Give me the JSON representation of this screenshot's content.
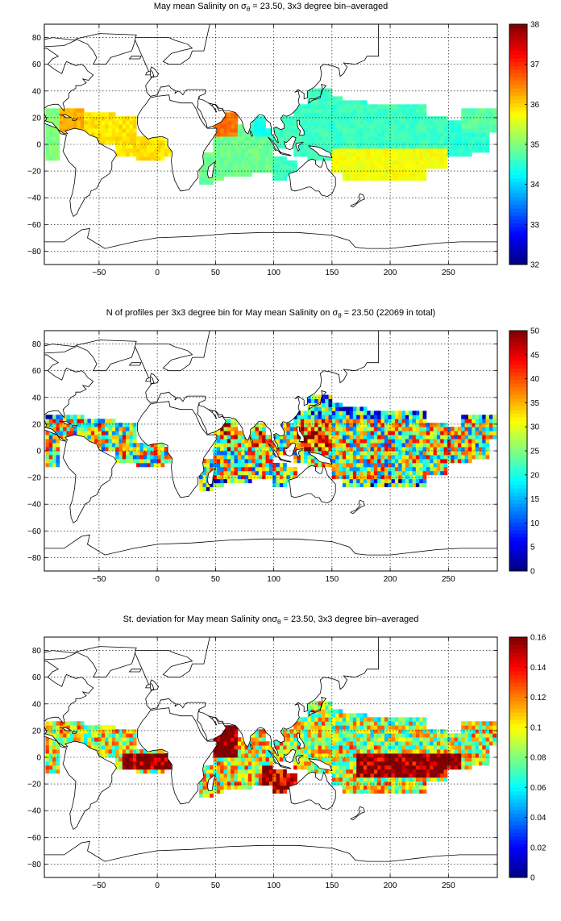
{
  "chart_data": [
    {
      "type": "heatmap",
      "title": {
        "prefix": "May mean Salinity on ",
        "symbol": "σ",
        "sub": "θ",
        "suffix": " = 23.50, 3x3 degree bin–averaged"
      },
      "x_ticks": [
        -50,
        0,
        50,
        100,
        150,
        200,
        250
      ],
      "y_ticks": [
        -80,
        -60,
        -40,
        -20,
        0,
        20,
        40,
        60,
        80
      ],
      "xlim": [
        -97,
        292
      ],
      "ylim": [
        -90,
        90
      ],
      "grid": true,
      "colormap": "jet",
      "colorbar": {
        "ticks": [
          32,
          33,
          34,
          35,
          36,
          37,
          38
        ],
        "clim": [
          32,
          38
        ]
      },
      "approx_values": {
        "tropical_atlantic": 35.9,
        "caribbean": 36.2,
        "arabian_sea": 36.6,
        "bay_of_bengal": 34.4,
        "indian_ocean": 34.9,
        "north_pacific": 34.6,
        "south_pacific": 35.7,
        "eastern_pacific": 34.5
      }
    },
    {
      "type": "heatmap",
      "title": {
        "prefix": "N of profiles per 3x3 degree bin for May mean Salinity on ",
        "symbol": "σ",
        "sub": "θ",
        "suffix": " = 23.50 (22069 in total)"
      },
      "x_ticks": [
        -50,
        0,
        50,
        100,
        150,
        200,
        250
      ],
      "y_ticks": [
        -80,
        -60,
        -40,
        -20,
        0,
        20,
        40,
        60,
        80
      ],
      "xlim": [
        -97,
        292
      ],
      "ylim": [
        -90,
        90
      ],
      "grid": true,
      "colormap": "jet",
      "colorbar": {
        "ticks": [
          0,
          5,
          10,
          15,
          20,
          25,
          30,
          35,
          40,
          45,
          50
        ],
        "clim": [
          0,
          50
        ]
      },
      "total_profiles": 22069
    },
    {
      "type": "heatmap",
      "title": {
        "prefix": "St. deviation for May mean Salinity on",
        "symbol": "σ",
        "sub": "θ",
        "suffix": " = 23.50, 3x3 degree bin–averaged"
      },
      "x_ticks": [
        -50,
        0,
        50,
        100,
        150,
        200,
        250
      ],
      "y_ticks": [
        -80,
        -60,
        -40,
        -20,
        0,
        20,
        40,
        60,
        80
      ],
      "xlim": [
        -97,
        292
      ],
      "ylim": [
        -90,
        90
      ],
      "grid": true,
      "colormap": "jet",
      "colorbar": {
        "ticks": [
          0,
          0.02,
          0.04,
          0.06,
          0.08,
          0.1,
          0.12,
          0.14,
          0.16
        ],
        "clim": [
          0,
          0.16
        ]
      }
    }
  ]
}
